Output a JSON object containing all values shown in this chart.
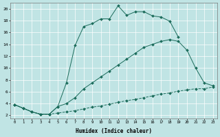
{
  "xlabel": "Humidex (Indice chaleur)",
  "ylabel": "",
  "xlim_min": -0.5,
  "xlim_max": 23.5,
  "ylim_min": 1.5,
  "ylim_max": 21.0,
  "xticks": [
    0,
    1,
    2,
    3,
    4,
    5,
    6,
    7,
    8,
    9,
    10,
    11,
    12,
    13,
    14,
    15,
    16,
    17,
    18,
    19,
    20,
    21,
    22,
    23
  ],
  "yticks": [
    2,
    4,
    6,
    8,
    10,
    12,
    14,
    16,
    18,
    20
  ],
  "bg_color": "#c0e4e4",
  "line_color": "#1a6b5a",
  "curve1_x": [
    0,
    1,
    2,
    3,
    4,
    5,
    6,
    7,
    8,
    9,
    10,
    11,
    12,
    13,
    14,
    15,
    16,
    17,
    18,
    19,
    20,
    21,
    22,
    23
  ],
  "curve1_y": [
    3.8,
    3.2,
    2.6,
    2.2,
    2.2,
    2.4,
    2.6,
    2.8,
    3.1,
    3.4,
    3.6,
    3.9,
    4.2,
    4.5,
    4.7,
    5.0,
    5.3,
    5.6,
    5.8,
    6.1,
    6.3,
    6.5,
    6.5,
    6.8
  ],
  "curve2_x": [
    0,
    1,
    2,
    3,
    4,
    5,
    6,
    7,
    8,
    9,
    10,
    11,
    12,
    13,
    14,
    15,
    16,
    17,
    18,
    19,
    20,
    21,
    22,
    23
  ],
  "curve2_y": [
    3.8,
    3.2,
    2.6,
    2.2,
    2.2,
    3.5,
    4.0,
    5.0,
    6.5,
    7.5,
    8.5,
    9.5,
    10.5,
    11.5,
    12.5,
    13.5,
    14.0,
    14.5,
    14.8,
    14.5,
    13.0,
    10.0,
    7.5,
    7.0
  ],
  "curve3_x": [
    0,
    1,
    2,
    3,
    4,
    5,
    6,
    7,
    8,
    9,
    10,
    11,
    12,
    13,
    14,
    15,
    16,
    17,
    18,
    19,
    20,
    21,
    22,
    23
  ],
  "curve3_y": [
    3.8,
    3.2,
    2.6,
    2.2,
    2.2,
    3.5,
    7.5,
    13.8,
    17.0,
    17.5,
    18.3,
    18.3,
    20.5,
    18.9,
    19.5,
    19.5,
    18.8,
    18.6,
    17.9,
    15.2,
    null,
    null,
    null,
    null
  ]
}
